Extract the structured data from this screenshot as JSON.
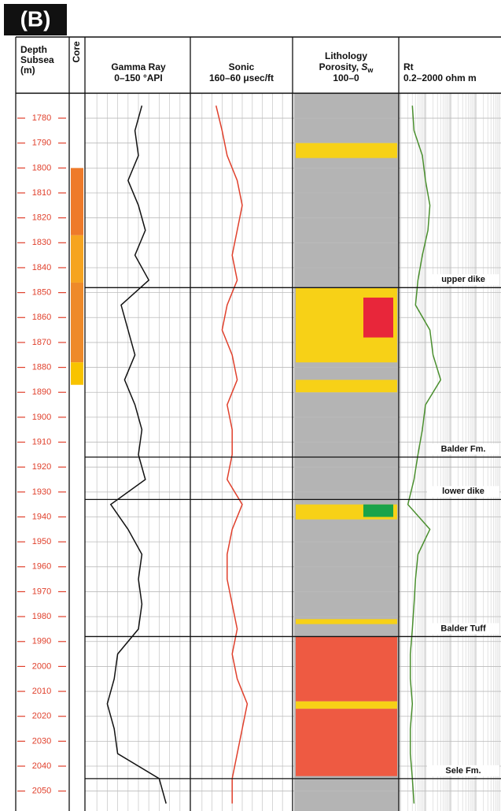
{
  "chart_data": {
    "type": "well-log",
    "panel_label": "(B)",
    "depth_header": [
      "Depth",
      "Subsea",
      "(m)"
    ],
    "core_header": "Core",
    "ylim": [
      1770,
      2058
    ],
    "yticks": [
      1780,
      1790,
      1800,
      1810,
      1820,
      1830,
      1840,
      1850,
      1860,
      1870,
      1880,
      1890,
      1900,
      1910,
      1920,
      1930,
      1940,
      1950,
      1960,
      1970,
      1980,
      1990,
      2000,
      2010,
      2020,
      2030,
      2040,
      2050
    ],
    "grid": true,
    "depths": [
      1775,
      1785,
      1795,
      1805,
      1815,
      1825,
      1835,
      1845,
      1855,
      1865,
      1875,
      1885,
      1895,
      1905,
      1915,
      1925,
      1935,
      1945,
      1955,
      1965,
      1975,
      1985,
      1995,
      2005,
      2015,
      2025,
      2035,
      2045,
      2055
    ],
    "series": [
      {
        "name": "Gamma Ray",
        "subtitle": "0–150 °API",
        "color": "#111111",
        "xlim": [
          0,
          150
        ],
        "values": [
          80,
          70,
          75,
          60,
          75,
          85,
          70,
          90,
          50,
          60,
          70,
          55,
          70,
          80,
          75,
          85,
          35,
          60,
          80,
          75,
          80,
          75,
          45,
          40,
          30,
          40,
          45,
          105,
          115
        ]
      },
      {
        "name": "Sonic",
        "subtitle": "160–60 μsec/ft",
        "color": "#e0402c",
        "xlim": [
          160,
          60
        ],
        "values": [
          136,
          130,
          125,
          115,
          110,
          115,
          120,
          115,
          125,
          130,
          120,
          115,
          125,
          120,
          120,
          125,
          110,
          120,
          125,
          125,
          120,
          115,
          120,
          115,
          105,
          110,
          115,
          120,
          120
        ]
      },
      {
        "name": "Rt",
        "subtitle": "0.2–2000 ohm m",
        "color": "#4a8f2e",
        "xlim": [
          0.2,
          2000
        ],
        "log": true,
        "values": [
          0.6,
          0.7,
          1.5,
          2,
          3,
          2.5,
          1.5,
          1,
          0.8,
          3,
          4,
          8,
          2,
          1.5,
          1,
          0.7,
          0.4,
          3,
          1,
          0.8,
          0.7,
          0.6,
          0.5,
          0.5,
          0.6,
          0.5,
          0.5,
          0.6,
          0.7
        ]
      }
    ],
    "lithology": {
      "title_lines": [
        "Lithology",
        "Porosity, "
      ],
      "symbol": "S",
      "subscript": "w",
      "range": "100–0",
      "background": "#b4b4b4",
      "intervals": [
        {
          "top": 1790,
          "base": 1796,
          "color": "#f7d117"
        },
        {
          "top": 1848,
          "base": 1878,
          "color": "#f7d117"
        },
        {
          "top": 1852,
          "base": 1868,
          "color": "#e8263a"
        },
        {
          "top": 1885,
          "base": 1890,
          "color": "#f7d117"
        },
        {
          "top": 1935,
          "base": 1941,
          "color": "#f7d117"
        },
        {
          "top": 1935,
          "base": 1940,
          "color": "#1aa34a"
        },
        {
          "top": 1981,
          "base": 1983,
          "color": "#f7d117"
        },
        {
          "top": 1988,
          "base": 2014,
          "color": "#ee5a42"
        },
        {
          "top": 2014,
          "base": 2017,
          "color": "#f7d117"
        },
        {
          "top": 2017,
          "base": 2044,
          "color": "#ee5a42"
        }
      ]
    },
    "core": [
      {
        "top": 1800,
        "base": 1827,
        "color": "#ee7a2a"
      },
      {
        "top": 1827,
        "base": 1846,
        "color": "#f6a420"
      },
      {
        "top": 1846,
        "base": 1878,
        "color": "#ee8a2a"
      },
      {
        "top": 1878,
        "base": 1887,
        "color": "#f8c300"
      }
    ],
    "tops": [
      {
        "depth": 1848,
        "label": "upper dike"
      },
      {
        "depth": 1916,
        "label": "Balder Fm."
      },
      {
        "depth": 1933,
        "label": "lower dike"
      },
      {
        "depth": 1988,
        "label": "Balder Tuff"
      },
      {
        "depth": 2045,
        "label": "Sele Fm."
      }
    ]
  }
}
